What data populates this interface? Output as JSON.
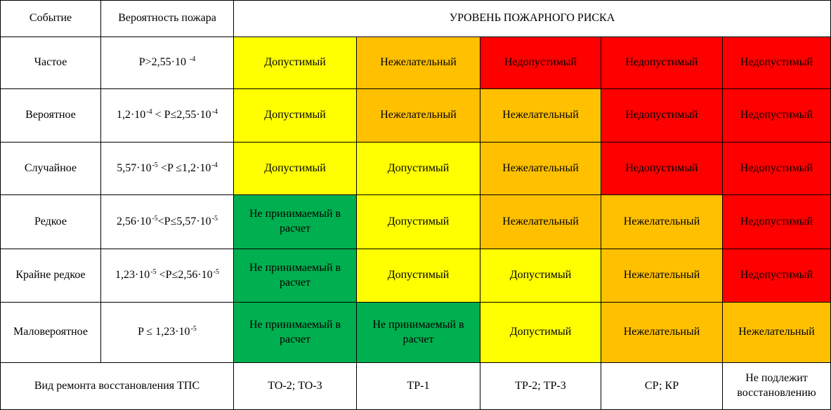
{
  "header": {
    "col_event": "Событие",
    "col_probability": "Вероятность пожара",
    "col_risk": "УРОВЕНЬ ПОЖАРНОГО РИСКА"
  },
  "colors": {
    "Допустимый": "#ffff00",
    "Нежелательный": "#ffc000",
    "Недопустимый": "#ff0000",
    "Не принимаемый в расчет": "#00b050"
  },
  "rows": [
    {
      "event": "Частое",
      "probability": [
        {
          "t": "P>2,55·10 "
        },
        {
          "s": "-4"
        }
      ],
      "cells": [
        "Допустимый",
        "Нежелательный",
        "Недопустимый",
        "Недопустимый",
        "Недопустимый"
      ]
    },
    {
      "event": "Вероятное",
      "probability": [
        {
          "t": "1,2·10"
        },
        {
          "s": "-4"
        },
        {
          "t": " < P≤2,55·10"
        },
        {
          "s": "-4"
        }
      ],
      "cells": [
        "Допустимый",
        "Нежелательный",
        "Нежелательный",
        "Недопустимый",
        "Недопустимый"
      ]
    },
    {
      "event": "Случайное",
      "probability": [
        {
          "t": "5,57·10"
        },
        {
          "s": "-5"
        },
        {
          "t": " <P ≤1,2·10"
        },
        {
          "s": "-4"
        }
      ],
      "cells": [
        "Допустимый",
        "Допустимый",
        "Нежелательный",
        "Недопустимый",
        "Недопустимый"
      ]
    },
    {
      "event": "Редкое",
      "probability": [
        {
          "t": "2,56·10"
        },
        {
          "s": "-5"
        },
        {
          "t": "<P≤5,57·10"
        },
        {
          "s": "-5"
        }
      ],
      "cells": [
        "Не принимаемый в расчет",
        "Допустимый",
        "Нежелательный",
        "Нежелательный",
        "Недопустимый"
      ]
    },
    {
      "event": "Крайне редкое",
      "probability": [
        {
          "t": "1,23·10"
        },
        {
          "s": "-5"
        },
        {
          "t": " <P≤2,56·10"
        },
        {
          "s": "-5"
        }
      ],
      "cells": [
        "Не принимаемый в расчет",
        "Допустимый",
        "Допустимый",
        "Нежелательный",
        "Недопустимый"
      ]
    },
    {
      "event": "Маловероятное",
      "probability": [
        {
          "t": "P ≤ 1,23·10"
        },
        {
          "s": "-5"
        }
      ],
      "cells": [
        "Не принимаемый в расчет",
        "Не принимаемый в расчет",
        "Допустимый",
        "Нежелательный",
        "Нежелательный"
      ]
    }
  ],
  "footer": {
    "label": "Вид ремонта восстановления ТПС",
    "cells": [
      "ТО-2; ТО-3",
      "ТР-1",
      "ТР-2; ТР-3",
      "СР; КР",
      "Не подлежит восстановлению"
    ]
  }
}
